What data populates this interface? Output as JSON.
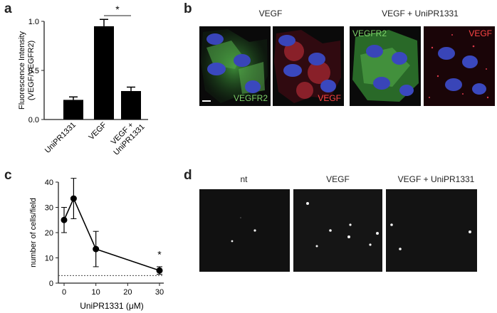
{
  "panels": {
    "a": "a",
    "b": "b",
    "c": "c",
    "d": "d"
  },
  "chart_data": [
    {
      "type": "bar",
      "categories": [
        "UniPR1331",
        "VEGF",
        "VEGF +\nUniPR1331"
      ],
      "values": [
        0.2,
        0.95,
        0.29
      ],
      "errors": [
        0.03,
        0.07,
        0.04
      ],
      "title": "",
      "xlabel": "",
      "ylabel": "Fluorescence Intensity\n(VEGF/VEGFR2)",
      "ylim": [
        0,
        1.0
      ],
      "yticks": [
        "0.0",
        "0.5",
        "1.0"
      ],
      "annotations": [
        {
          "text": "*",
          "between": [
            "VEGF",
            "VEGF +\nUniPR1331"
          ]
        }
      ]
    },
    {
      "type": "line",
      "x": [
        0,
        3,
        10,
        30
      ],
      "y": [
        25,
        33.5,
        13.5,
        5
      ],
      "errors": [
        5,
        8,
        7,
        1.5
      ],
      "baseline": 3,
      "xlabel": "UniPR1331 (μM)",
      "ylabel": "number of cells/field",
      "xlim": [
        0,
        30
      ],
      "ylim": [
        0,
        40
      ],
      "xticks": [
        "0",
        "10",
        "20",
        "30"
      ],
      "yticks": [
        "0",
        "10",
        "20",
        "30",
        "40"
      ],
      "annotations": [
        {
          "text": "*",
          "x": 30
        }
      ]
    }
  ],
  "panel_b": {
    "col_title_1": "VEGF",
    "col_title_2": "VEGF + UniPR1331",
    "img1_label": "VEGFR2",
    "img2_label": "VEGF",
    "img3_label": "VEGFR2",
    "img4_label": "VEGF",
    "colors": {
      "green": "#7fd46a",
      "red": "#ff4545"
    }
  },
  "panel_d": {
    "titles": [
      "nt",
      "VEGF",
      "VEGF + UniPR1331"
    ]
  }
}
